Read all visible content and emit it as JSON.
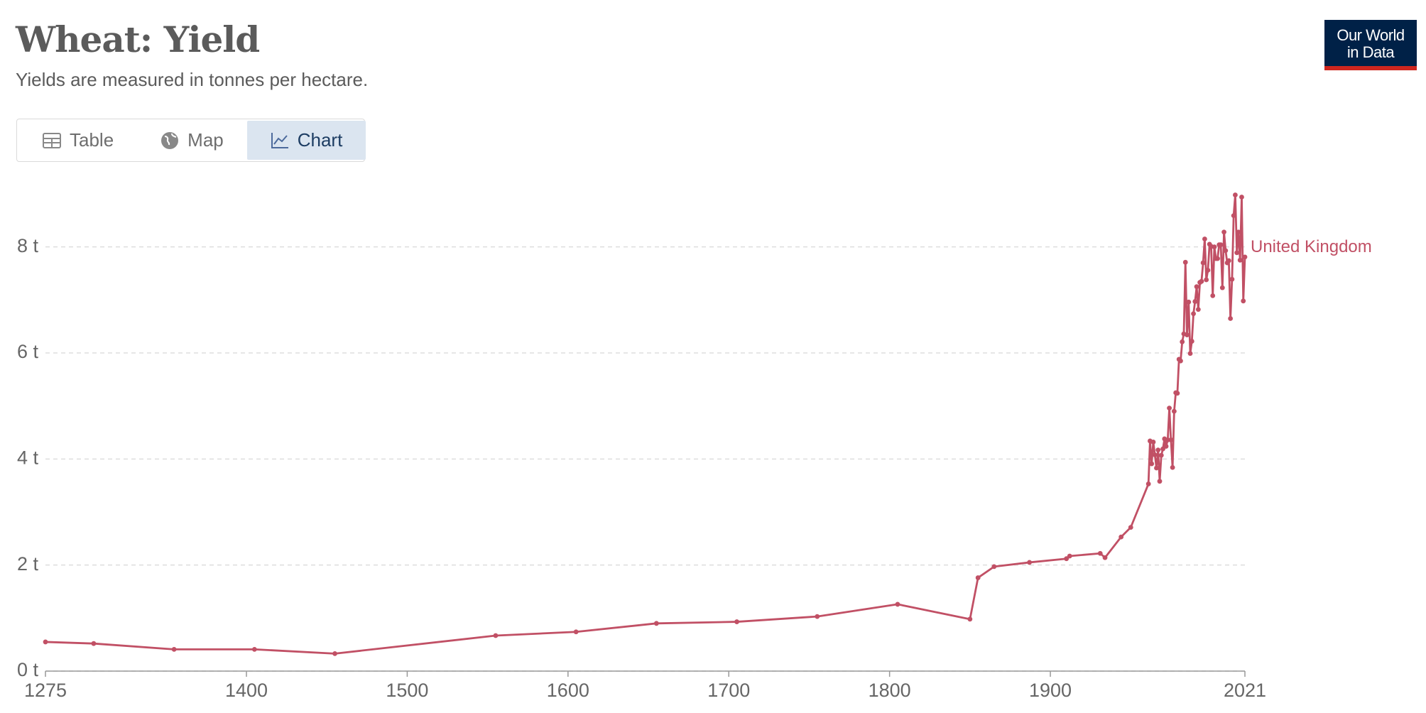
{
  "header": {
    "title": "Wheat: Yield",
    "subtitle": "Yields are measured in tonnes per hectare."
  },
  "tabs": [
    "Table",
    "Map",
    "Chart"
  ],
  "logo": [
    "Our World",
    "in Data"
  ],
  "chart_data": {
    "type": "line",
    "x": [
      1275,
      1305,
      1355,
      1405,
      1455,
      1555,
      1605,
      1655,
      1705,
      1755,
      1805,
      1850,
      1855,
      1865,
      1887,
      1910,
      1912,
      1931,
      1934,
      1944,
      1950,
      1961,
      1962,
      1963,
      1964,
      1965,
      1966,
      1967,
      1968,
      1969,
      1970,
      1971,
      1972,
      1973,
      1974,
      1975,
      1976,
      1977,
      1978,
      1979,
      1980,
      1981,
      1982,
      1983,
      1984,
      1985,
      1986,
      1987,
      1988,
      1989,
      1990,
      1991,
      1992,
      1993,
      1994,
      1995,
      1996,
      1997,
      1998,
      1999,
      2000,
      2001,
      2002,
      2003,
      2004,
      2005,
      2006,
      2007,
      2008,
      2009,
      2010,
      2011,
      2012,
      2013,
      2014,
      2015,
      2016,
      2017,
      2018,
      2019,
      2020,
      2021
    ],
    "series": [
      {
        "name": "United Kingdom",
        "color": "#c15065",
        "values": [
          0.55,
          0.52,
          0.41,
          0.41,
          0.33,
          0.67,
          0.74,
          0.9,
          0.93,
          1.03,
          1.26,
          0.98,
          1.76,
          1.97,
          2.05,
          2.12,
          2.17,
          2.22,
          2.14,
          2.53,
          2.71,
          3.53,
          4.34,
          3.91,
          4.32,
          4.08,
          3.83,
          4.17,
          3.58,
          4.07,
          4.19,
          4.38,
          4.24,
          4.36,
          4.96,
          4.36,
          3.84,
          4.9,
          5.25,
          5.24,
          5.88,
          5.85,
          6.21,
          6.36,
          7.71,
          6.34,
          6.96,
          5.99,
          6.22,
          6.74,
          6.97,
          7.25,
          6.82,
          7.33,
          7.35,
          7.7,
          8.15,
          7.38,
          7.56,
          8.05,
          8.01,
          7.08,
          8.0,
          7.78,
          7.78,
          8.04,
          8.04,
          7.23,
          8.28,
          7.93,
          7.7,
          7.74,
          6.65,
          7.39,
          8.59,
          8.98,
          7.89,
          8.28,
          7.75,
          8.94,
          6.98,
          7.81
        ]
      }
    ],
    "xlim": [
      1275,
      2021
    ],
    "xticks": [
      1275,
      1400,
      1500,
      1600,
      1700,
      1800,
      1900,
      2021
    ],
    "ylim": [
      0,
      9
    ],
    "yticks": [
      {
        "value": 0,
        "label": "0 t"
      },
      {
        "value": 2,
        "label": "2 t"
      },
      {
        "value": 4,
        "label": "4 t"
      },
      {
        "value": 6,
        "label": "6 t"
      },
      {
        "value": 8,
        "label": "8 t"
      }
    ],
    "grid": true
  }
}
